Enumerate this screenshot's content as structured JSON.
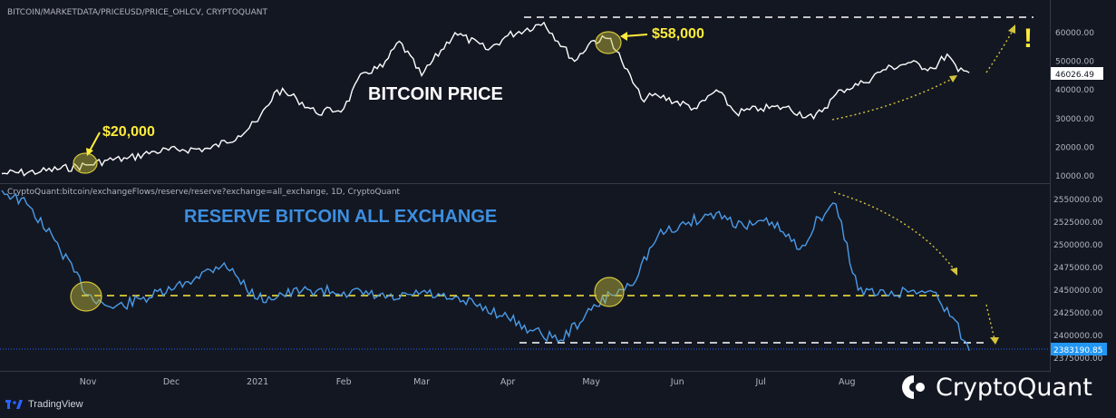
{
  "price_panel": {
    "source": "BITCOIN/MARKETDATA/PRICEUSD/PRICE_OHLCV, CRYPTOQUANT",
    "title": "BITCOIN PRICE",
    "title_color": "#ffffff",
    "line_color": "#ffffff",
    "annotation_20k": "$20,000",
    "annotation_58k": "$58,000",
    "exclamation": "!",
    "annotation_color": "#ffeb3b",
    "last_value_label": "46026.49"
  },
  "reserve_panel": {
    "source": "CryptoQuant:bitcoin/exchangeFlows/reserve/reserve?exchange=all_exchange, 1D, CryptoQuant",
    "title": "RESERVE BITCOIN ALL EXCHANGE",
    "title_color": "#3d8fe0",
    "line_color": "#4a9be8",
    "last_value_label": "2383190.85"
  },
  "footer": {
    "tradingview": "TradingView",
    "cryptoquant": "CryptoQuant"
  },
  "chart_data": [
    {
      "type": "line",
      "title": "BITCOIN PRICE",
      "x_ticks": [
        "Nov",
        "Dec",
        "2021",
        "Feb",
        "Mar",
        "Apr",
        "May",
        "Jun",
        "Jul",
        "Aug"
      ],
      "y_ticks": [
        "10000.00",
        "20000.00",
        "30000.00",
        "40000.00",
        "50000.00",
        "60000.00"
      ],
      "ylim": [
        8000,
        68000
      ],
      "series": [
        {
          "x": [
            "2020-10-01",
            "2020-10-15",
            "2020-11-01",
            "2020-11-08",
            "2020-11-15",
            "2020-11-25",
            "2020-12-05",
            "2020-12-15",
            "2020-12-25",
            "2021-01-01",
            "2021-01-08",
            "2021-01-15",
            "2021-01-22",
            "2021-02-01",
            "2021-02-08",
            "2021-02-15",
            "2021-02-21",
            "2021-03-01",
            "2021-03-13",
            "2021-03-25",
            "2021-04-01",
            "2021-04-14",
            "2021-04-25",
            "2021-05-01",
            "2021-05-08",
            "2021-05-12",
            "2021-05-19",
            "2021-05-25",
            "2021-06-08",
            "2021-06-15",
            "2021-06-22",
            "2021-07-01",
            "2021-07-10",
            "2021-07-20",
            "2021-07-30",
            "2021-08-07",
            "2021-08-14",
            "2021-08-23",
            "2021-09-01",
            "2021-09-06",
            "2021-09-10",
            "2021-09-14"
          ],
          "values": [
            10800,
            11500,
            13800,
            15500,
            16000,
            18500,
            19200,
            19500,
            24000,
            29000,
            40000,
            37000,
            32000,
            33500,
            46000,
            48000,
            57000,
            45000,
            60000,
            54000,
            59000,
            63500,
            50000,
            57000,
            58000,
            50000,
            37000,
            38000,
            33500,
            40000,
            32000,
            33500,
            34000,
            30000,
            40000,
            42500,
            47000,
            49500,
            47500,
            52500,
            46500,
            46026
          ]
        }
      ],
      "annotations": [
        "$20,000",
        "$58,000",
        "!"
      ],
      "last_value": 46026.49
    },
    {
      "type": "line",
      "title": "RESERVE BITCOIN ALL EXCHANGE",
      "x_ticks": [
        "Nov",
        "Dec",
        "2021",
        "Feb",
        "Mar",
        "Apr",
        "May",
        "Jun",
        "Jul",
        "Aug"
      ],
      "y_ticks": [
        "2375000.00",
        "2400000.00",
        "2425000.00",
        "2450000.00",
        "2475000.00",
        "2500000.00",
        "2525000.00",
        "2550000.00"
      ],
      "ylim": [
        2370000,
        2560000
      ],
      "series": [
        {
          "x": [
            "2020-10-01",
            "2020-10-10",
            "2020-10-20",
            "2020-11-01",
            "2020-11-10",
            "2020-11-20",
            "2020-12-01",
            "2020-12-10",
            "2020-12-20",
            "2021-01-01",
            "2021-01-10",
            "2021-01-20",
            "2021-02-01",
            "2021-02-10",
            "2021-02-20",
            "2021-03-01",
            "2021-03-10",
            "2021-03-20",
            "2021-04-01",
            "2021-04-10",
            "2021-04-20",
            "2021-05-01",
            "2021-05-08",
            "2021-05-15",
            "2021-05-25",
            "2021-06-05",
            "2021-06-15",
            "2021-06-25",
            "2021-07-05",
            "2021-07-15",
            "2021-07-22",
            "2021-07-28",
            "2021-08-05",
            "2021-08-15",
            "2021-08-25",
            "2021-09-01",
            "2021-09-08",
            "2021-09-14"
          ],
          "values": [
            2560000,
            2545000,
            2505000,
            2445000,
            2430000,
            2440000,
            2450000,
            2465000,
            2480000,
            2440000,
            2445000,
            2450000,
            2448000,
            2445000,
            2440000,
            2448000,
            2440000,
            2435000,
            2420000,
            2405000,
            2395000,
            2428000,
            2445000,
            2455000,
            2510000,
            2525000,
            2535000,
            2520000,
            2525000,
            2495000,
            2530000,
            2545000,
            2450000,
            2445000,
            2450000,
            2448000,
            2420000,
            2383190
          ]
        }
      ],
      "annotations": [],
      "last_value": 2383190.85
    }
  ]
}
